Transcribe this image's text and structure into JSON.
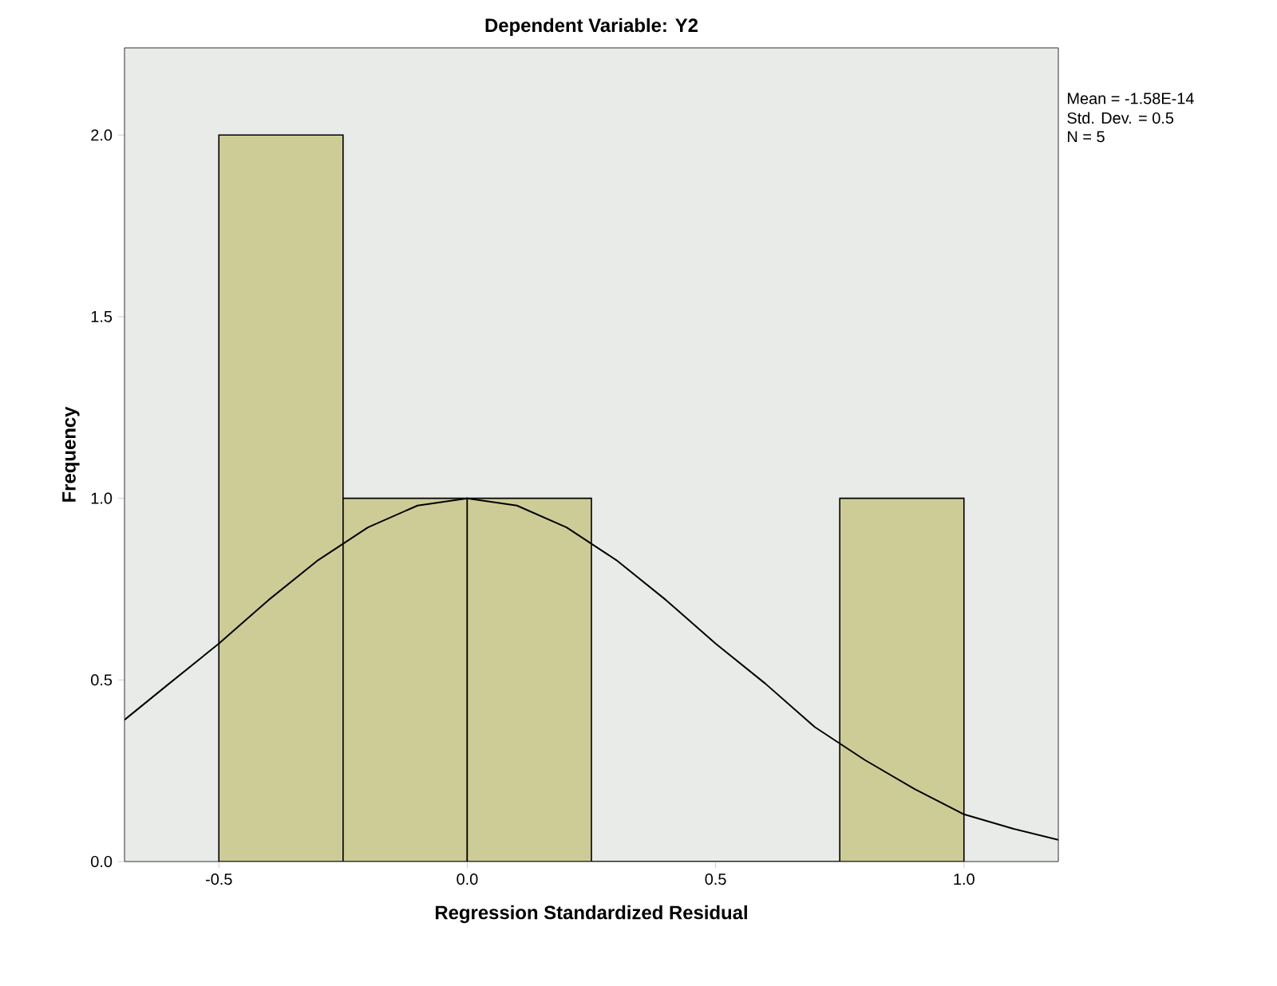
{
  "chart_data": {
    "type": "histogram",
    "title": "Dependent Variable: Y2",
    "xlabel": "Regression Standardized Residual",
    "ylabel": "Frequency",
    "bins": [
      -0.5,
      -0.25,
      0,
      0.25,
      0.5,
      0.75,
      1.0
    ],
    "values": [
      2,
      1,
      1,
      0,
      0,
      1
    ],
    "color": "#cdcc96",
    "series": [
      {
        "type": "line",
        "color": "#000000",
        "x": [
          -0.69,
          -0.6,
          -0.5,
          -0.4,
          -0.3,
          -0.2,
          -0.1,
          0,
          0.1,
          0.2,
          0.3,
          0.4,
          0.5,
          0.6,
          0.7,
          0.8,
          0.9,
          1.0,
          1.1,
          1.19
        ],
        "values": [
          0.39,
          0.49,
          0.6,
          0.72,
          0.83,
          0.92,
          0.98,
          1.0,
          0.98,
          0.92,
          0.83,
          0.72,
          0.6,
          0.49,
          0.37,
          0.28,
          0.2,
          0.13,
          0.09,
          0.06
        ]
      }
    ],
    "xlim": [
      -0.69,
      1.19
    ],
    "ylim": [
      0,
      2.24
    ],
    "xticks": [
      -0.5,
      {
        "value": 0,
        "label": "0.0"
      },
      0.5,
      {
        "value": 1,
        "label": "1.0"
      }
    ],
    "yticks": [
      {
        "value": 0,
        "label": "0.0"
      },
      0.5,
      {
        "value": 1,
        "label": "1.0"
      },
      1.5,
      {
        "value": 2,
        "label": "2.0"
      }
    ],
    "grid": false,
    "annotations": [
      "Mean = -1.58E-14",
      "Std. Dev. = 0.5",
      "N = 5"
    ]
  }
}
